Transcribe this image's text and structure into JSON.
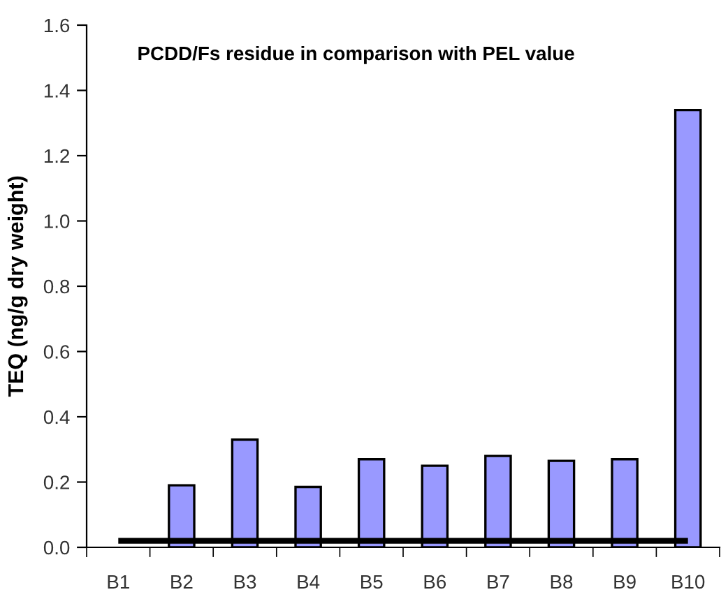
{
  "chart_data": {
    "type": "bar",
    "title": "PCDD/Fs residue in comparison with PEL value",
    "ylabel": "TEQ (ng/g dry weight)",
    "categories": [
      "B1",
      "B2",
      "B3",
      "B4",
      "B5",
      "B6",
      "B7",
      "B8",
      "B9",
      "B10"
    ],
    "series": [
      {
        "color": "#9999ff",
        "values": [
          null,
          0.19,
          0.33,
          0.185,
          0.27,
          0.25,
          0.28,
          0.265,
          0.27,
          1.34
        ]
      },
      {
        "type": "line",
        "color": "#000000",
        "values": [
          0.02,
          0.02,
          0.02,
          0.02,
          0.02,
          0.02,
          0.02,
          0.02,
          0.02,
          0.02
        ]
      }
    ],
    "ylim": [
      0,
      1.6
    ],
    "yticks": [
      {
        "value": 0,
        "label": "0.0"
      },
      0.2,
      0.4,
      0.6,
      0.8,
      {
        "value": 1,
        "label": "1.0"
      },
      1.2,
      1.4,
      1.6
    ],
    "grid": false,
    "legend": false
  }
}
